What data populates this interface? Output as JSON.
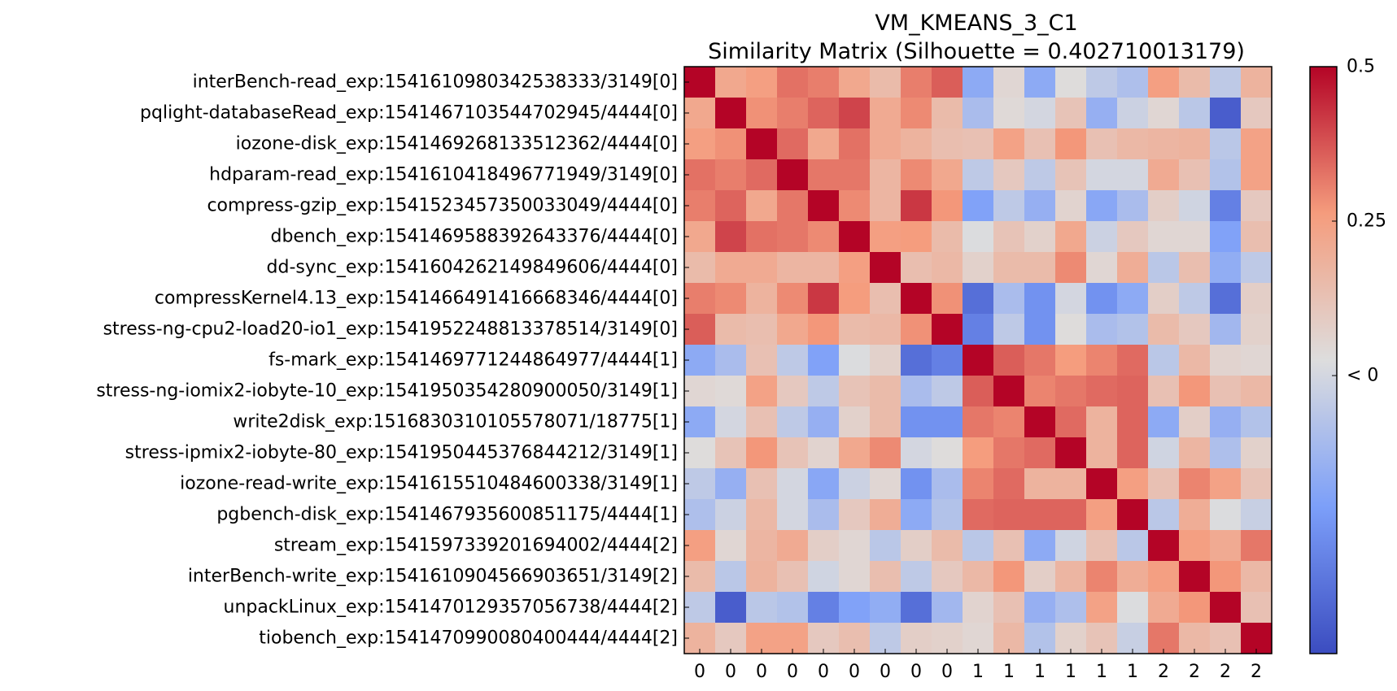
{
  "chart_data": {
    "type": "heatmap",
    "title": "VM_KMEANS_3_C1",
    "subtitle": "Similarity Matrix (Silhouette = 0.402710013179)",
    "row_labels": [
      "interBench-read_exp:1541610980342538333/3149[0]",
      "pqlight-databaseRead_exp:1541467103544702945/4444[0]",
      "iozone-disk_exp:1541469268133512362/4444[0]",
      "hdparam-read_exp:1541610418496771949/3149[0]",
      "compress-gzip_exp:1541523457350033049/4444[0]",
      "dbench_exp:1541469588392643376/4444[0]",
      "dd-sync_exp:1541604262149849606/4444[0]",
      "compressKernel4.13_exp:1541466491416668346/4444[0]",
      "stress-ng-cpu2-load20-io1_exp:1541952248813378514/3149[0]",
      "fs-mark_exp:1541469771244864977/4444[1]",
      "stress-ng-iomix2-iobyte-10_exp:1541950354280900050/3149[1]",
      "write2disk_exp:1516830310105578071/18775[1]",
      "stress-ipmix2-iobyte-80_exp:1541950445376844212/3149[1]",
      "iozone-read-write_exp:1541615510484600338/3149[1]",
      "pgbench-disk_exp:1541467935600851175/4444[1]",
      "stream_exp:1541597339201694002/4444[2]",
      "interBench-write_exp:1541610904566903651/3149[2]",
      "unpackLinux_exp:1541470129357056738/4444[2]",
      "tiobench_exp:1541470990080400444/4444[2]"
    ],
    "col_labels": [
      "0",
      "0",
      "0",
      "0",
      "0",
      "0",
      "0",
      "0",
      "0",
      "1",
      "1",
      "1",
      "1",
      "1",
      "1",
      "2",
      "2",
      "2",
      "2"
    ],
    "values": [
      [
        0.5,
        0.22,
        0.25,
        0.33,
        0.31,
        0.22,
        0.15,
        0.31,
        0.36,
        -0.17,
        0.05,
        -0.17,
        0.03,
        -0.05,
        -0.09,
        0.25,
        0.15,
        -0.05,
        0.18
      ],
      [
        0.22,
        0.5,
        0.28,
        0.31,
        0.35,
        0.4,
        0.21,
        0.29,
        0.15,
        -0.1,
        0.04,
        0.0,
        0.12,
        -0.15,
        -0.02,
        0.05,
        -0.06,
        -0.4,
        0.1
      ],
      [
        0.25,
        0.28,
        0.5,
        0.34,
        0.22,
        0.33,
        0.21,
        0.18,
        0.14,
        0.13,
        0.24,
        0.13,
        0.27,
        0.13,
        0.16,
        0.17,
        0.18,
        -0.06,
        0.24
      ],
      [
        0.33,
        0.31,
        0.34,
        0.5,
        0.32,
        0.32,
        0.17,
        0.29,
        0.22,
        -0.05,
        0.1,
        -0.05,
        0.12,
        0.0,
        0.0,
        0.21,
        0.13,
        -0.08,
        0.24
      ],
      [
        0.31,
        0.35,
        0.22,
        0.32,
        0.5,
        0.29,
        0.17,
        0.42,
        0.27,
        -0.2,
        -0.05,
        -0.15,
        0.06,
        -0.18,
        -0.1,
        0.08,
        -0.01,
        -0.3,
        0.1
      ],
      [
        0.22,
        0.4,
        0.33,
        0.32,
        0.29,
        0.5,
        0.25,
        0.26,
        0.15,
        0.02,
        0.12,
        0.07,
        0.22,
        -0.02,
        0.1,
        0.05,
        0.05,
        -0.2,
        0.14
      ],
      [
        0.15,
        0.21,
        0.21,
        0.17,
        0.17,
        0.25,
        0.5,
        0.14,
        0.16,
        0.07,
        0.15,
        0.15,
        0.29,
        0.05,
        0.2,
        -0.06,
        0.14,
        -0.16,
        -0.05
      ],
      [
        0.31,
        0.29,
        0.18,
        0.29,
        0.42,
        0.26,
        0.14,
        0.5,
        0.28,
        -0.35,
        -0.1,
        -0.25,
        0.0,
        -0.25,
        -0.17,
        0.08,
        -0.05,
        -0.35,
        0.08
      ],
      [
        0.36,
        0.15,
        0.14,
        0.22,
        0.27,
        0.15,
        0.16,
        0.28,
        0.5,
        -0.3,
        -0.05,
        -0.25,
        0.03,
        -0.1,
        -0.08,
        0.15,
        0.1,
        -0.12,
        0.07
      ],
      [
        -0.17,
        -0.1,
        0.13,
        -0.05,
        -0.2,
        0.02,
        0.07,
        -0.35,
        -0.3,
        0.5,
        0.36,
        0.32,
        0.26,
        0.3,
        0.34,
        -0.06,
        0.16,
        0.06,
        0.05
      ],
      [
        0.05,
        0.04,
        0.24,
        0.1,
        -0.05,
        0.12,
        0.15,
        -0.1,
        -0.05,
        0.36,
        0.5,
        0.3,
        0.32,
        0.34,
        0.35,
        0.13,
        0.27,
        0.13,
        0.16
      ],
      [
        -0.17,
        0.0,
        0.13,
        -0.05,
        -0.15,
        0.07,
        0.15,
        -0.25,
        -0.25,
        0.32,
        0.3,
        0.5,
        0.34,
        0.18,
        0.35,
        -0.17,
        0.08,
        -0.15,
        -0.08
      ],
      [
        0.03,
        0.12,
        0.27,
        0.12,
        0.06,
        0.22,
        0.29,
        0.0,
        0.03,
        0.26,
        0.32,
        0.34,
        0.5,
        0.18,
        0.35,
        -0.01,
        0.17,
        -0.09,
        0.07
      ],
      [
        -0.05,
        -0.15,
        0.13,
        0.0,
        -0.18,
        -0.02,
        0.05,
        -0.25,
        -0.1,
        0.3,
        0.34,
        0.18,
        0.18,
        0.5,
        0.25,
        0.13,
        0.3,
        0.24,
        0.12
      ],
      [
        -0.09,
        -0.02,
        0.16,
        0.0,
        -0.1,
        0.1,
        0.2,
        -0.17,
        -0.08,
        0.34,
        0.35,
        0.35,
        0.35,
        0.25,
        0.5,
        -0.06,
        0.2,
        0.02,
        -0.03
      ],
      [
        0.25,
        0.05,
        0.17,
        0.21,
        0.08,
        0.05,
        -0.06,
        0.08,
        0.15,
        -0.06,
        0.13,
        -0.17,
        -0.01,
        0.13,
        -0.06,
        0.5,
        0.25,
        0.21,
        0.32
      ],
      [
        0.15,
        -0.06,
        0.18,
        0.13,
        -0.01,
        0.05,
        0.14,
        -0.05,
        0.1,
        0.16,
        0.27,
        0.08,
        0.17,
        0.3,
        0.2,
        0.25,
        0.5,
        0.27,
        0.16
      ],
      [
        -0.05,
        -0.4,
        -0.06,
        -0.08,
        -0.3,
        -0.2,
        -0.16,
        -0.35,
        -0.12,
        0.06,
        0.13,
        -0.15,
        -0.09,
        0.24,
        0.02,
        0.21,
        0.27,
        0.5,
        0.13
      ],
      [
        0.18,
        0.1,
        0.24,
        0.24,
        0.1,
        0.14,
        -0.05,
        0.08,
        0.07,
        0.05,
        0.16,
        -0.08,
        0.07,
        0.12,
        -0.03,
        0.32,
        0.16,
        0.13,
        0.5
      ]
    ],
    "colormap": "coolwarm",
    "vmin": -0.45,
    "vmax": 0.5,
    "colorbar_ticks": [
      {
        "value": 0.5,
        "label": "0.5"
      },
      {
        "value": 0.25,
        "label": "0.25"
      },
      {
        "value": 0.0,
        "label": "< 0"
      }
    ],
    "grid": false,
    "legend": "colorbar-right"
  }
}
